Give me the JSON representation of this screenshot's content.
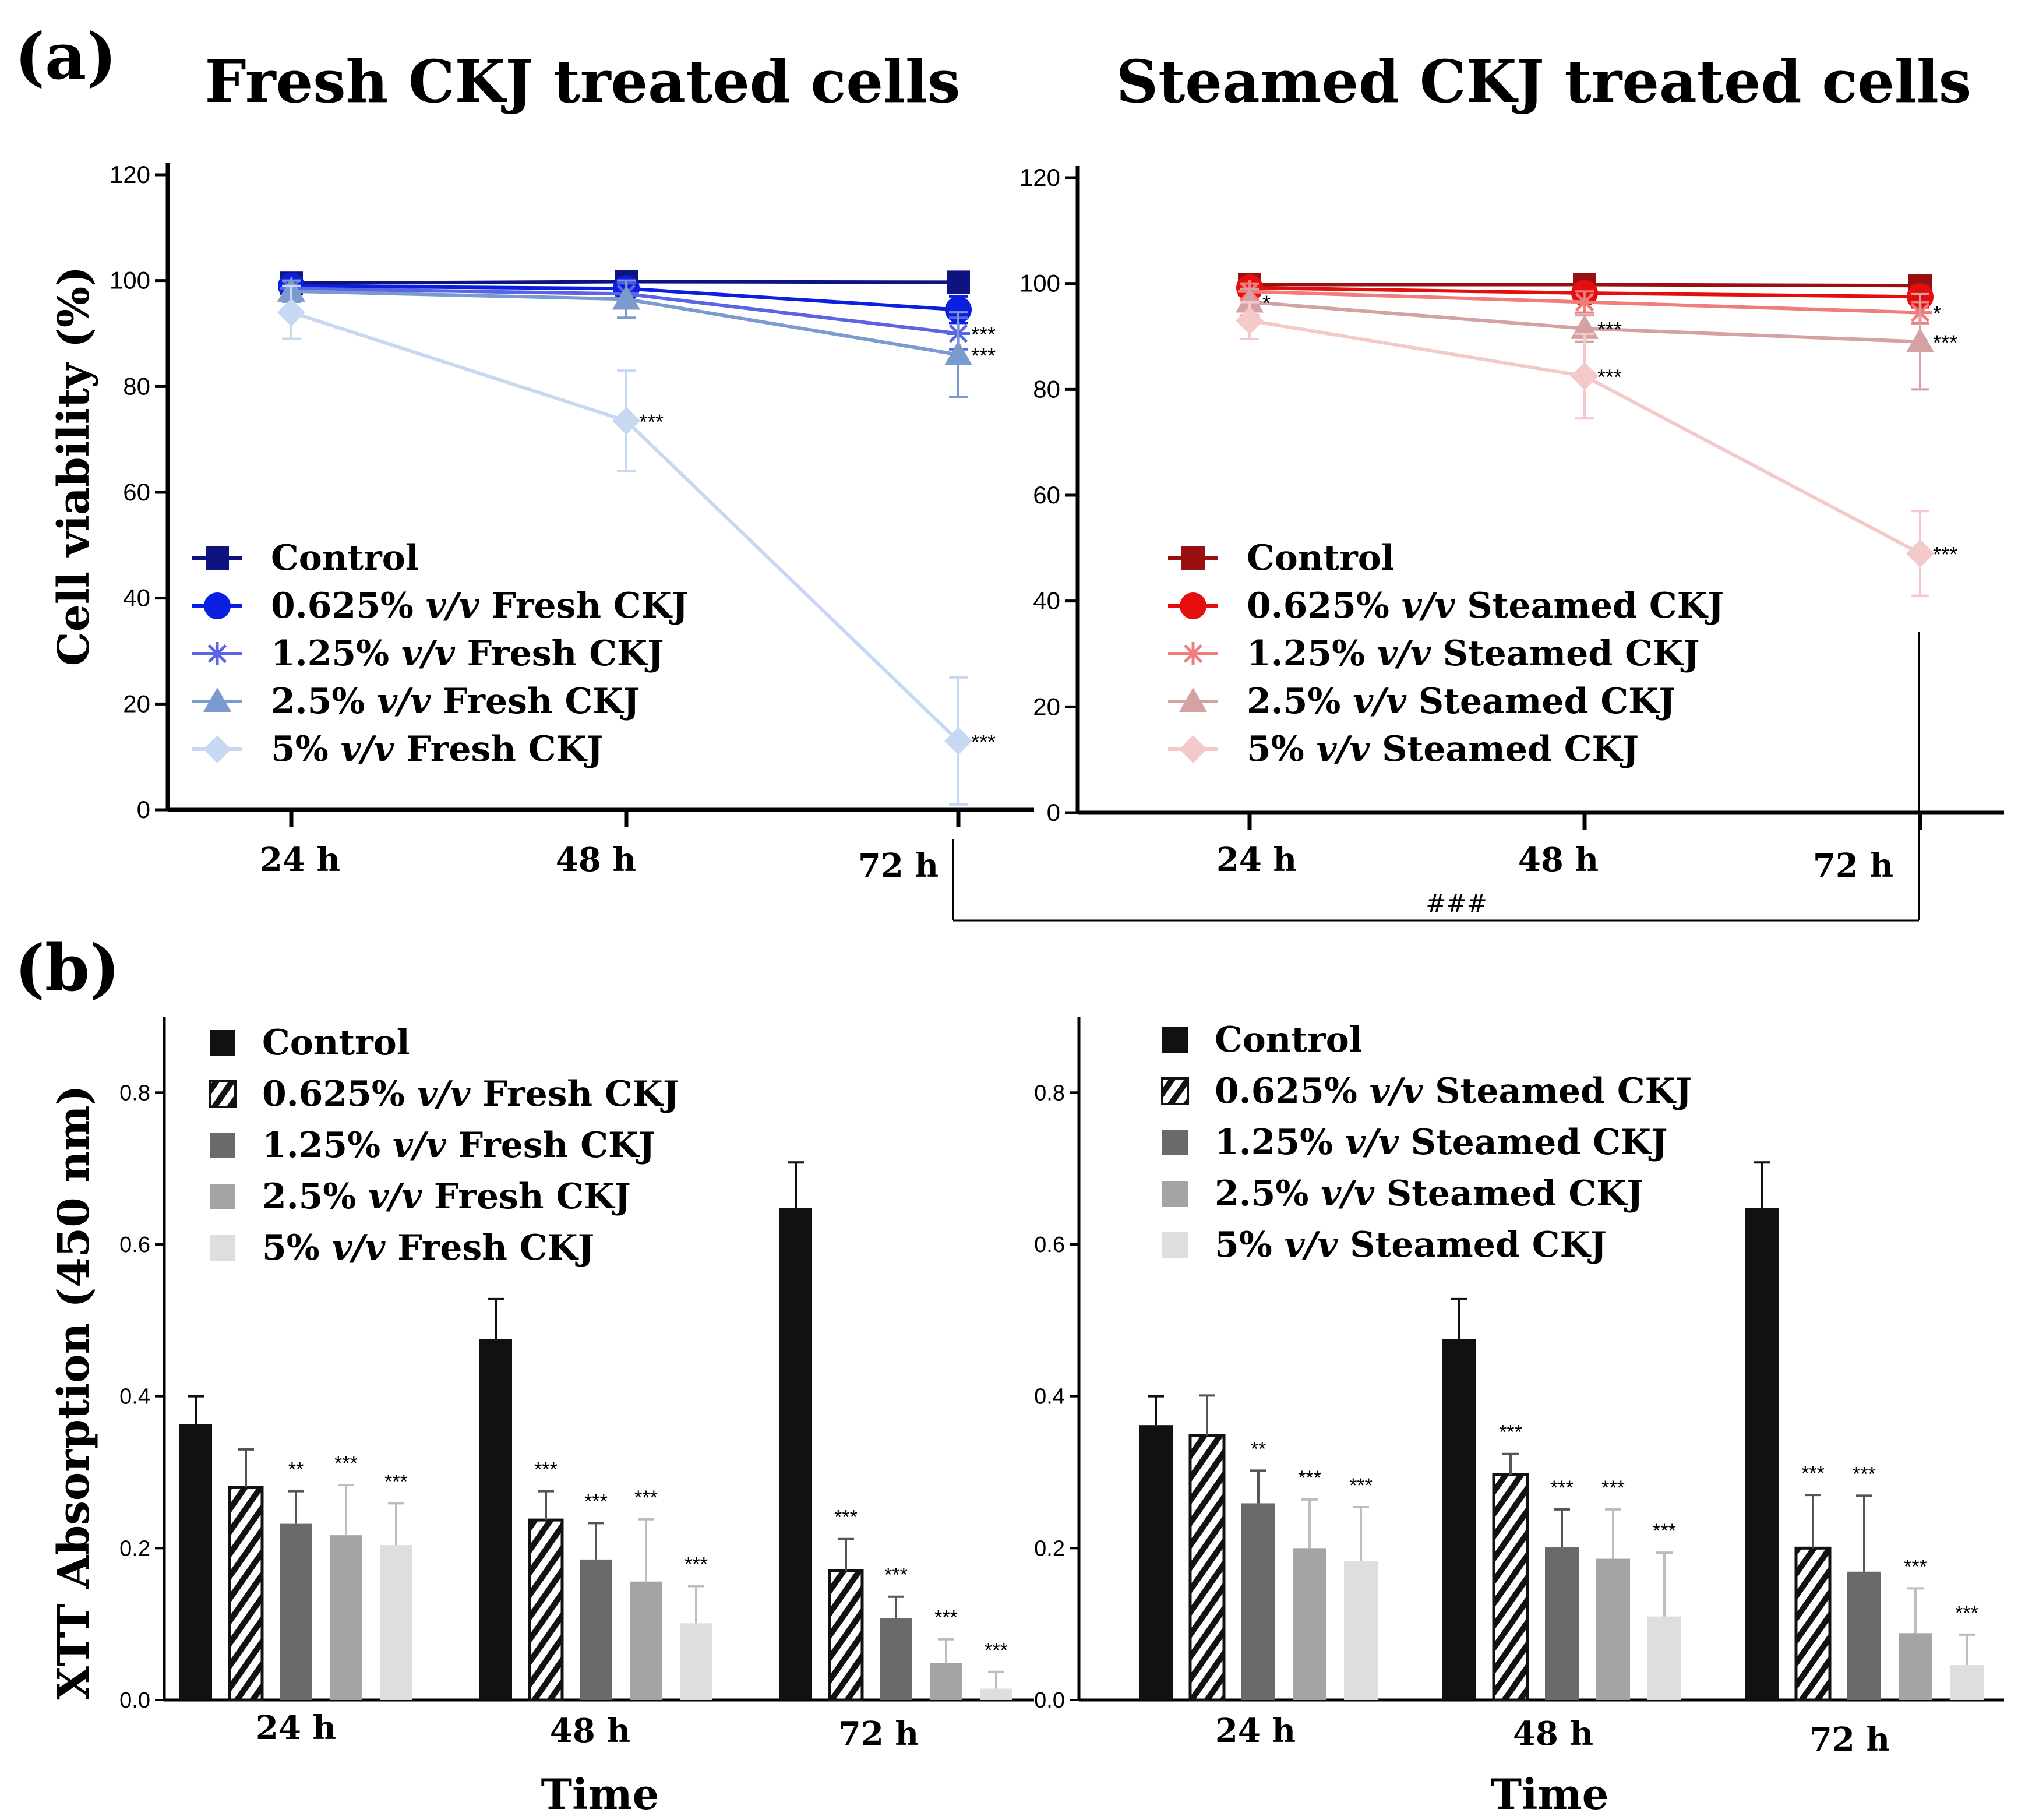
{
  "panel_a": {
    "label": "(a)",
    "ylabel": "Cell viability (%)",
    "bracket_label": "###"
  },
  "panel_b": {
    "label": "(b)",
    "ylabel": "XTT Absorption (450 nm)",
    "xlabel": "Time"
  },
  "colors": {
    "fresh": [
      "#0d1480",
      "#0b1fe0",
      "#5c64e6",
      "#7b9bcf",
      "#c7d8f2"
    ],
    "steamed": [
      "#9a1010",
      "#e40e0e",
      "#f07c7c",
      "#d4a2a2",
      "#f4c9c9"
    ],
    "bars": [
      "#111111",
      "#ffffff",
      "#6a6a6a",
      "#a4a4a4",
      "#dedede"
    ]
  },
  "chart_data": [
    {
      "id": "a-fresh",
      "type": "line",
      "title": "Fresh CKJ treated cells",
      "xlabel": "",
      "ylabel": "Cell viability (%)",
      "categories": [
        "24 h",
        "48 h",
        "72 h"
      ],
      "ylim": [
        0,
        120
      ],
      "yticks": [
        "0",
        "20",
        "40",
        "60",
        "80",
        "100",
        "120"
      ],
      "legend": "lower-left",
      "series": [
        {
          "name": "Control",
          "marker": "square",
          "values": [
            99.5,
            99.8,
            99.7
          ],
          "errors": [
            1.0,
            1.0,
            1.0
          ],
          "sig": [
            "",
            "",
            ""
          ]
        },
        {
          "name": "0.625% v/v Fresh CKJ",
          "marker": "circle",
          "values": [
            99,
            98.5,
            94.5
          ],
          "errors": [
            1.5,
            1.5,
            2.5
          ],
          "sig": [
            "",
            "",
            ""
          ]
        },
        {
          "name": "1.25% v/v Fresh CKJ",
          "marker": "asterisk",
          "values": [
            98.5,
            97.5,
            90
          ],
          "errors": [
            1.5,
            2,
            3
          ],
          "sig": [
            "",
            "",
            "***"
          ]
        },
        {
          "name": "2.5% v/v Fresh CKJ",
          "marker": "triangle",
          "values": [
            98,
            96.5,
            86
          ],
          "errors": [
            2,
            3.5,
            8
          ],
          "sig": [
            "",
            "",
            "***"
          ]
        },
        {
          "name": "5% v/v Fresh CKJ",
          "marker": "diamond",
          "values": [
            94,
            73.5,
            13
          ],
          "errors": [
            5,
            9.5,
            12
          ],
          "sig": [
            "",
            "***",
            "***"
          ]
        }
      ]
    },
    {
      "id": "a-steamed",
      "type": "line",
      "title": "Steamed CKJ treated cells",
      "xlabel": "",
      "ylabel": "Cell viability (%)",
      "categories": [
        "24 h",
        "48 h",
        "72 h"
      ],
      "ylim": [
        0,
        120
      ],
      "yticks": [
        "0",
        "20",
        "40",
        "60",
        "80",
        "100",
        "120"
      ],
      "legend": "lower-left",
      "series": [
        {
          "name": "Control",
          "marker": "square",
          "values": [
            99.8,
            99.8,
            99.6
          ],
          "errors": [
            1.0,
            1.0,
            1.0
          ],
          "sig": [
            "",
            "",
            ""
          ]
        },
        {
          "name": "0.625% v/v Steamed CKJ",
          "marker": "circle",
          "values": [
            99.2,
            98.2,
            97.5
          ],
          "errors": [
            1.5,
            1.5,
            2
          ],
          "sig": [
            "",
            "",
            ""
          ]
        },
        {
          "name": "1.25% v/v Steamed CKJ",
          "marker": "asterisk",
          "values": [
            98.5,
            96.5,
            94.5
          ],
          "errors": [
            1.5,
            2,
            2
          ],
          "sig": [
            "",
            "",
            "*"
          ]
        },
        {
          "name": "2.5% v/v Steamed CKJ",
          "marker": "triangle",
          "values": [
            96.5,
            91.5,
            89
          ],
          "errors": [
            2.5,
            2.5,
            9
          ],
          "sig": [
            "*",
            "***",
            "***"
          ]
        },
        {
          "name": "5% v/v Steamed CKJ",
          "marker": "diamond",
          "values": [
            93,
            82.5,
            49
          ],
          "errors": [
            3.5,
            8,
            8
          ],
          "sig": [
            "",
            "***",
            "***"
          ]
        }
      ]
    },
    {
      "id": "b-fresh",
      "type": "bar",
      "title": "",
      "xlabel": "Time",
      "ylabel": "XTT Absorption (450 nm)",
      "categories": [
        "24 h",
        "48 h",
        "72 h"
      ],
      "ylim": [
        0,
        0.9
      ],
      "yticks": [
        "0.0",
        "0.2",
        "0.4",
        "0.6",
        "0.8"
      ],
      "legend": "top-left",
      "series": [
        {
          "name": "Control",
          "pattern": "solid",
          "values": [
            0.363,
            0.475,
            0.648
          ],
          "errors": [
            0.037,
            0.053,
            0.06
          ],
          "sig": [
            "",
            "",
            ""
          ]
        },
        {
          "name": "0.625% v/v Fresh CKJ",
          "pattern": "hatch",
          "values": [
            0.28,
            0.237,
            0.17
          ],
          "errors": [
            0.05,
            0.038,
            0.042
          ],
          "sig": [
            "",
            "***",
            "***"
          ]
        },
        {
          "name": "1.25% v/v Fresh CKJ",
          "pattern": "solid",
          "values": [
            0.232,
            0.185,
            0.108
          ],
          "errors": [
            0.043,
            0.048,
            0.028
          ],
          "sig": [
            "**",
            "***",
            "***"
          ]
        },
        {
          "name": "2.5% v/v Fresh CKJ",
          "pattern": "solid",
          "values": [
            0.217,
            0.156,
            0.049
          ],
          "errors": [
            0.066,
            0.082,
            0.031
          ],
          "sig": [
            "***",
            "***",
            "***"
          ]
        },
        {
          "name": "5% v/v Fresh CKJ",
          "pattern": "solid",
          "values": [
            0.204,
            0.101,
            0.015
          ],
          "errors": [
            0.055,
            0.049,
            0.022
          ],
          "sig": [
            "***",
            "***",
            "***"
          ]
        }
      ]
    },
    {
      "id": "b-steamed",
      "type": "bar",
      "title": "",
      "xlabel": "Time",
      "ylabel": "XTT Absorption (450 nm)",
      "categories": [
        "24 h",
        "48 h",
        "72 h"
      ],
      "ylim": [
        0,
        0.9
      ],
      "yticks": [
        "0.0",
        "0.2",
        "0.4",
        "0.6",
        "0.8"
      ],
      "legend": "top-left",
      "series": [
        {
          "name": "Control",
          "pattern": "solid",
          "values": [
            0.362,
            0.475,
            0.648
          ],
          "errors": [
            0.038,
            0.053,
            0.06
          ],
          "sig": [
            "",
            "",
            ""
          ]
        },
        {
          "name": "0.625% v/v Steamed CKJ",
          "pattern": "hatch",
          "values": [
            0.348,
            0.297,
            0.2
          ],
          "errors": [
            0.053,
            0.027,
            0.07
          ],
          "sig": [
            "",
            "***",
            "***"
          ]
        },
        {
          "name": "1.25% v/v Steamed CKJ",
          "pattern": "solid",
          "values": [
            0.259,
            0.201,
            0.169
          ],
          "errors": [
            0.043,
            0.05,
            0.1
          ],
          "sig": [
            "**",
            "***",
            "***"
          ]
        },
        {
          "name": "2.5% v/v Steamed CKJ",
          "pattern": "solid",
          "values": [
            0.2,
            0.186,
            0.088
          ],
          "errors": [
            0.064,
            0.065,
            0.059
          ],
          "sig": [
            "***",
            "***",
            "***"
          ]
        },
        {
          "name": "5% v/v Steamed CKJ",
          "pattern": "solid",
          "values": [
            0.183,
            0.11,
            0.046
          ],
          "errors": [
            0.071,
            0.084,
            0.04
          ],
          "sig": [
            "***",
            "***",
            "***"
          ]
        }
      ]
    }
  ]
}
